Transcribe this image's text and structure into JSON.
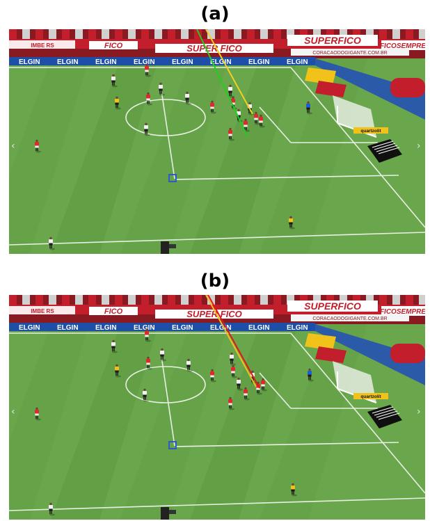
{
  "panels": [
    {
      "label": "(a)",
      "lines": [
        {
          "name": "green",
          "color": "#22cc22"
        },
        {
          "name": "yellow",
          "color": "#f0d020"
        }
      ]
    },
    {
      "label": "(b)",
      "lines": [
        {
          "name": "red",
          "color": "#e01818"
        },
        {
          "name": "yellow",
          "color": "#f0c020"
        }
      ]
    }
  ],
  "boards": {
    "sponsor": "ELGIN",
    "banner": "SUPERFICO",
    "banner2": "SUPER FICO",
    "fico": "FICO",
    "web": "CORACAODOGIGANTE.COM.BR",
    "side": "FICOSEMPRE",
    "cam": "quartzolit",
    "imbe": "IMBE RS"
  },
  "colors": {
    "pitch_light": "#6aa64b",
    "pitch_dark": "#5c9a41",
    "stand_red": "#c21e2b",
    "ad_blue": "#1e4fa8",
    "marker": "#2a52d6",
    "team_red": "#e02a2a",
    "team_white": "#f2f2f2",
    "keeper_yellow": "#f0c21a"
  }
}
